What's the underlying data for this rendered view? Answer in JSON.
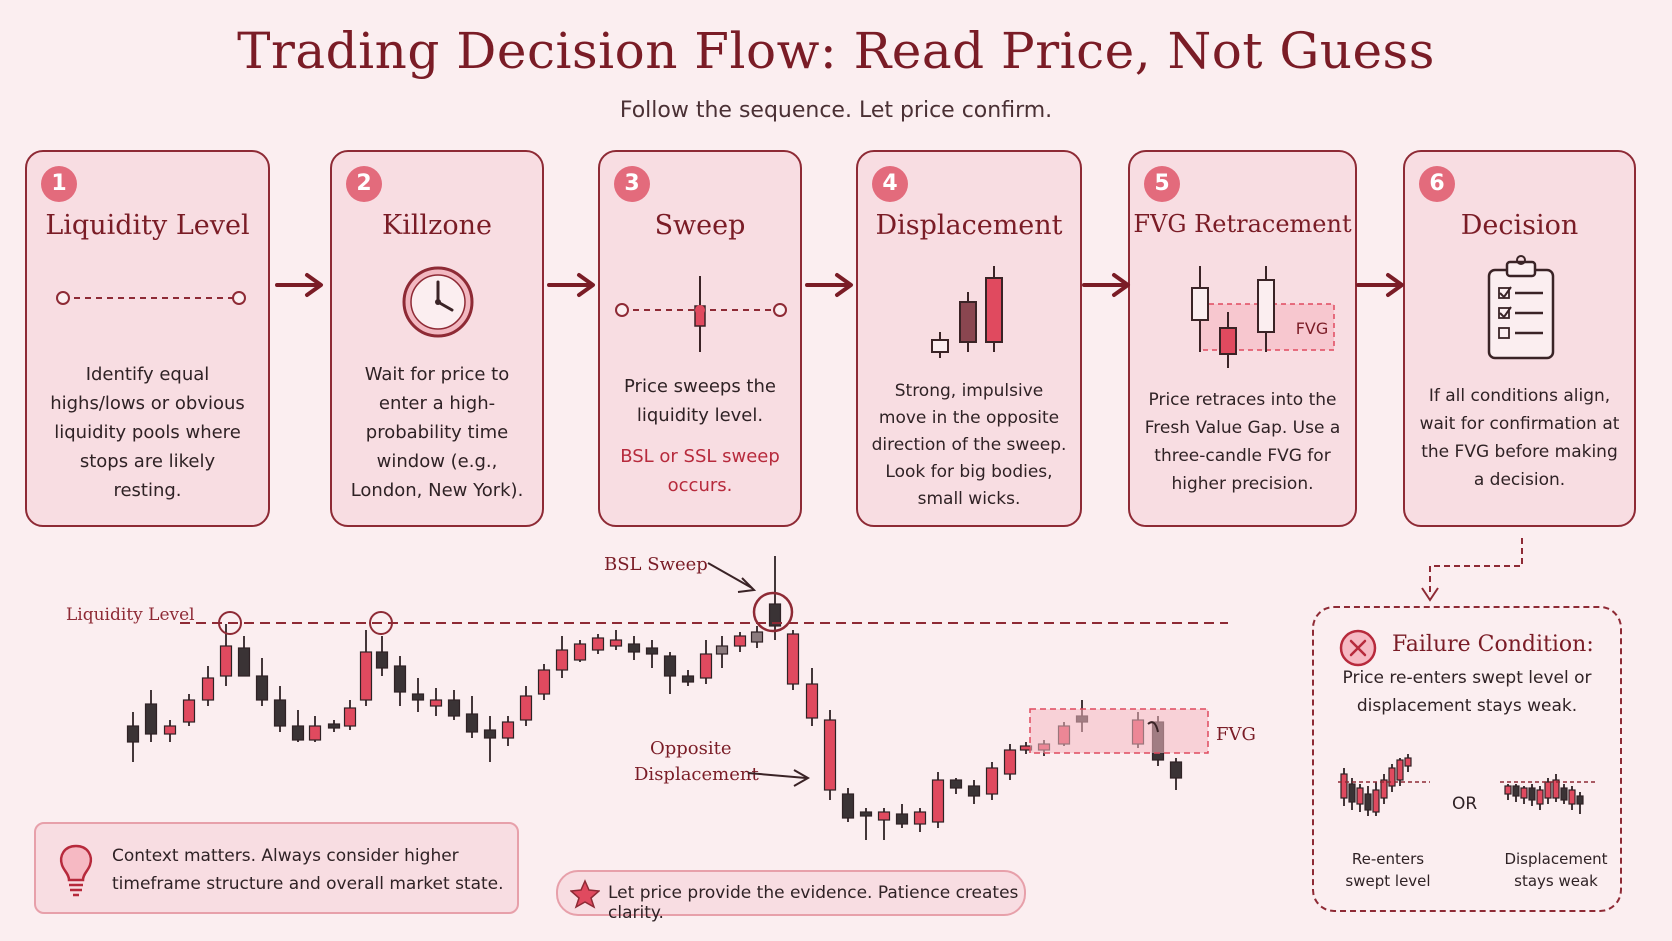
{
  "title": "Trading Decision Flow: Read Price, Not Guess",
  "subtitle": "Follow the sequence. Let price confirm.",
  "steps": [
    {
      "num": "1",
      "title": "Liquidity Level",
      "desc": "Identify equal highs/lows or obvious liquidity pools where stops are likely resting."
    },
    {
      "num": "2",
      "title": "Killzone",
      "desc": "Wait for price to enter a high-probability time window (e.g., London, New York)."
    },
    {
      "num": "3",
      "title": "Sweep",
      "desc": "Price sweeps the liquidity level.",
      "highlight": "BSL or SSL sweep occurs."
    },
    {
      "num": "4",
      "title": "Displacement",
      "desc": "Strong, impulsive move in the opposite direction of the sweep. Look for big bodies, small wicks."
    },
    {
      "num": "5",
      "title": "FVG Retracement",
      "desc": "Price retraces into the Fresh Value Gap. Use a three-candle FVG for higher precision.",
      "icon_label": "FVG"
    },
    {
      "num": "6",
      "title": "Decision",
      "desc": "If all conditions align, wait for confirmation at the FVG before making a decision."
    }
  ],
  "chart": {
    "liquidity_label": "Liquidity Level",
    "sweep_label": "BSL Sweep",
    "displacement_label_1": "Opposite",
    "displacement_label_2": "Displacement",
    "fvg_label": "FVG"
  },
  "failure": {
    "title": "Failure Condition:",
    "desc": "Price re-enters swept level or displacement stays weak.",
    "case1_line1": "Re-enters",
    "case1_line2": "swept level",
    "or_label": "OR",
    "case2_line1": "Displacement",
    "case2_line2": "stays weak"
  },
  "notes": {
    "context": "Context matters. Always consider higher timeframe structure and overall market state.",
    "patience": "Let price provide the evidence. Patience creates clarity."
  },
  "icons": [
    "clock-icon",
    "clipboard-checklist-icon",
    "lightbulb-icon",
    "star-icon",
    "x-circle-icon",
    "arrow-right-icon"
  ],
  "colors": {
    "accent": "#e36b7c",
    "dark": "#7a1c26",
    "bullish": "#e04a5f",
    "bearish": "#3a3335",
    "panel": "#f8dde2"
  }
}
